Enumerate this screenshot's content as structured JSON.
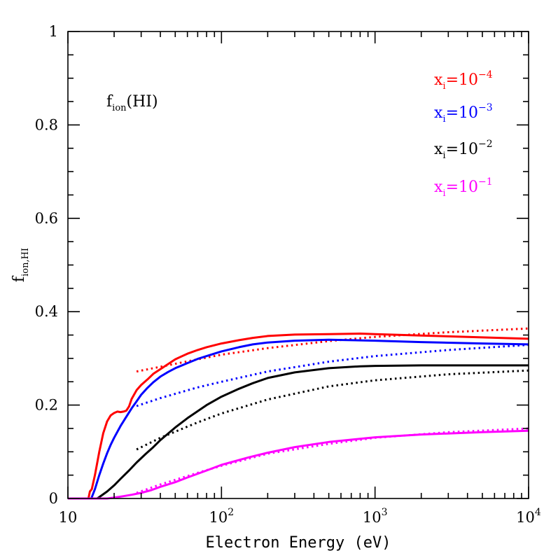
{
  "chart_data": {
    "type": "line",
    "title": "",
    "xlabel": "Electron Energy (eV)",
    "ylabel": {
      "base": "f",
      "sub": "ion,HI"
    },
    "annotation": {
      "base": "f",
      "sub": "ion",
      "tail": "(HI)"
    },
    "xscale": "log",
    "xlim": [
      10,
      10000
    ],
    "ylim": [
      0,
      1
    ],
    "xticks": [
      {
        "value": 10,
        "base": "10",
        "exp": ""
      },
      {
        "value": 100,
        "base": "10",
        "exp": "2"
      },
      {
        "value": 1000,
        "base": "10",
        "exp": "3"
      },
      {
        "value": 10000,
        "base": "10",
        "exp": "4"
      }
    ],
    "yticks": [
      {
        "value": 0,
        "label": "0"
      },
      {
        "value": 0.2,
        "label": "0.2"
      },
      {
        "value": 0.4,
        "label": "0.4"
      },
      {
        "value": 0.6,
        "label": "0.6"
      },
      {
        "value": 0.8,
        "label": "0.8"
      },
      {
        "value": 1,
        "label": "1"
      }
    ],
    "legend_position": "top-right",
    "series": [
      {
        "name": "x_i=10^-4",
        "label_base": "x",
        "label_sub": "i",
        "label_eq": "=10",
        "label_exp": "−4",
        "color": "#ff0000",
        "solid": [
          [
            10,
            0
          ],
          [
            13.6,
            0
          ],
          [
            13.9,
            0.015
          ],
          [
            14.3,
            0.02
          ],
          [
            15,
            0.05
          ],
          [
            16,
            0.1
          ],
          [
            17,
            0.14
          ],
          [
            18,
            0.165
          ],
          [
            19,
            0.178
          ],
          [
            20,
            0.183
          ],
          [
            21,
            0.186
          ],
          [
            22,
            0.185
          ],
          [
            23,
            0.186
          ],
          [
            24,
            0.188
          ],
          [
            25,
            0.197
          ],
          [
            26,
            0.213
          ],
          [
            28,
            0.232
          ],
          [
            30,
            0.243
          ],
          [
            33,
            0.255
          ],
          [
            36,
            0.267
          ],
          [
            40,
            0.277
          ],
          [
            45,
            0.288
          ],
          [
            50,
            0.298
          ],
          [
            60,
            0.31
          ],
          [
            70,
            0.318
          ],
          [
            80,
            0.324
          ],
          [
            100,
            0.332
          ],
          [
            130,
            0.339
          ],
          [
            160,
            0.344
          ],
          [
            200,
            0.348
          ],
          [
            300,
            0.351
          ],
          [
            500,
            0.352
          ],
          [
            800,
            0.353
          ],
          [
            1000,
            0.352
          ],
          [
            2000,
            0.349
          ],
          [
            5000,
            0.345
          ],
          [
            10000,
            0.342
          ]
        ],
        "dotted": [
          [
            28,
            0.272
          ],
          [
            40,
            0.282
          ],
          [
            70,
            0.298
          ],
          [
            100,
            0.308
          ],
          [
            200,
            0.322
          ],
          [
            500,
            0.337
          ],
          [
            1000,
            0.346
          ],
          [
            3000,
            0.356
          ],
          [
            10000,
            0.364
          ]
        ]
      },
      {
        "name": "x_i=10^-3",
        "label_base": "x",
        "label_sub": "i",
        "label_eq": "=10",
        "label_exp": "−3",
        "color": "#0000ff",
        "solid": [
          [
            10,
            0
          ],
          [
            14.2,
            0
          ],
          [
            15,
            0.02
          ],
          [
            16,
            0.05
          ],
          [
            17,
            0.075
          ],
          [
            18,
            0.097
          ],
          [
            19,
            0.115
          ],
          [
            20,
            0.13
          ],
          [
            22,
            0.155
          ],
          [
            24,
            0.175
          ],
          [
            26,
            0.193
          ],
          [
            28,
            0.208
          ],
          [
            30,
            0.222
          ],
          [
            33,
            0.237
          ],
          [
            36,
            0.249
          ],
          [
            40,
            0.261
          ],
          [
            45,
            0.271
          ],
          [
            50,
            0.279
          ],
          [
            60,
            0.29
          ],
          [
            70,
            0.299
          ],
          [
            80,
            0.305
          ],
          [
            100,
            0.315
          ],
          [
            130,
            0.324
          ],
          [
            160,
            0.33
          ],
          [
            200,
            0.334
          ],
          [
            300,
            0.338
          ],
          [
            500,
            0.34
          ],
          [
            1000,
            0.338
          ],
          [
            2000,
            0.335
          ],
          [
            5000,
            0.332
          ],
          [
            10000,
            0.33
          ]
        ],
        "dotted": [
          [
            28,
            0.198
          ],
          [
            40,
            0.215
          ],
          [
            70,
            0.238
          ],
          [
            100,
            0.25
          ],
          [
            200,
            0.272
          ],
          [
            500,
            0.293
          ],
          [
            1000,
            0.305
          ],
          [
            3000,
            0.318
          ],
          [
            10000,
            0.329
          ]
        ]
      },
      {
        "name": "x_i=10^-2",
        "label_base": "x",
        "label_sub": "i",
        "label_eq": "=10",
        "label_exp": "−2",
        "color": "#000000",
        "solid": [
          [
            10,
            0
          ],
          [
            15.5,
            0
          ],
          [
            16,
            0.003
          ],
          [
            18,
            0.015
          ],
          [
            20,
            0.028
          ],
          [
            22,
            0.042
          ],
          [
            25,
            0.06
          ],
          [
            28,
            0.077
          ],
          [
            32,
            0.095
          ],
          [
            36,
            0.11
          ],
          [
            40,
            0.125
          ],
          [
            50,
            0.152
          ],
          [
            60,
            0.172
          ],
          [
            70,
            0.187
          ],
          [
            80,
            0.2
          ],
          [
            100,
            0.218
          ],
          [
            130,
            0.235
          ],
          [
            160,
            0.247
          ],
          [
            200,
            0.258
          ],
          [
            300,
            0.27
          ],
          [
            500,
            0.279
          ],
          [
            800,
            0.283
          ],
          [
            1000,
            0.284
          ],
          [
            2000,
            0.285
          ],
          [
            5000,
            0.285
          ],
          [
            10000,
            0.285
          ]
        ],
        "dotted": [
          [
            28,
            0.105
          ],
          [
            40,
            0.13
          ],
          [
            70,
            0.163
          ],
          [
            100,
            0.182
          ],
          [
            200,
            0.212
          ],
          [
            500,
            0.24
          ],
          [
            1000,
            0.253
          ],
          [
            3000,
            0.266
          ],
          [
            10000,
            0.274
          ]
        ]
      },
      {
        "name": "x_i=10^-1",
        "label_base": "x",
        "label_sub": "i",
        "label_eq": "=10",
        "label_exp": "−1",
        "color": "#ff00ff",
        "solid": [
          [
            10,
            0
          ],
          [
            18,
            0
          ],
          [
            20,
            0.002
          ],
          [
            23,
            0.005
          ],
          [
            26,
            0.008
          ],
          [
            30,
            0.012
          ],
          [
            35,
            0.018
          ],
          [
            40,
            0.025
          ],
          [
            50,
            0.035
          ],
          [
            60,
            0.045
          ],
          [
            80,
            0.06
          ],
          [
            100,
            0.072
          ],
          [
            150,
            0.088
          ],
          [
            200,
            0.098
          ],
          [
            300,
            0.11
          ],
          [
            500,
            0.121
          ],
          [
            1000,
            0.131
          ],
          [
            2000,
            0.137
          ],
          [
            5000,
            0.142
          ],
          [
            10000,
            0.145
          ]
        ],
        "dotted": [
          [
            28,
            0.012
          ],
          [
            40,
            0.03
          ],
          [
            70,
            0.055
          ],
          [
            100,
            0.07
          ],
          [
            200,
            0.096
          ],
          [
            500,
            0.117
          ],
          [
            1000,
            0.13
          ],
          [
            3000,
            0.142
          ],
          [
            10000,
            0.15
          ]
        ]
      }
    ]
  }
}
